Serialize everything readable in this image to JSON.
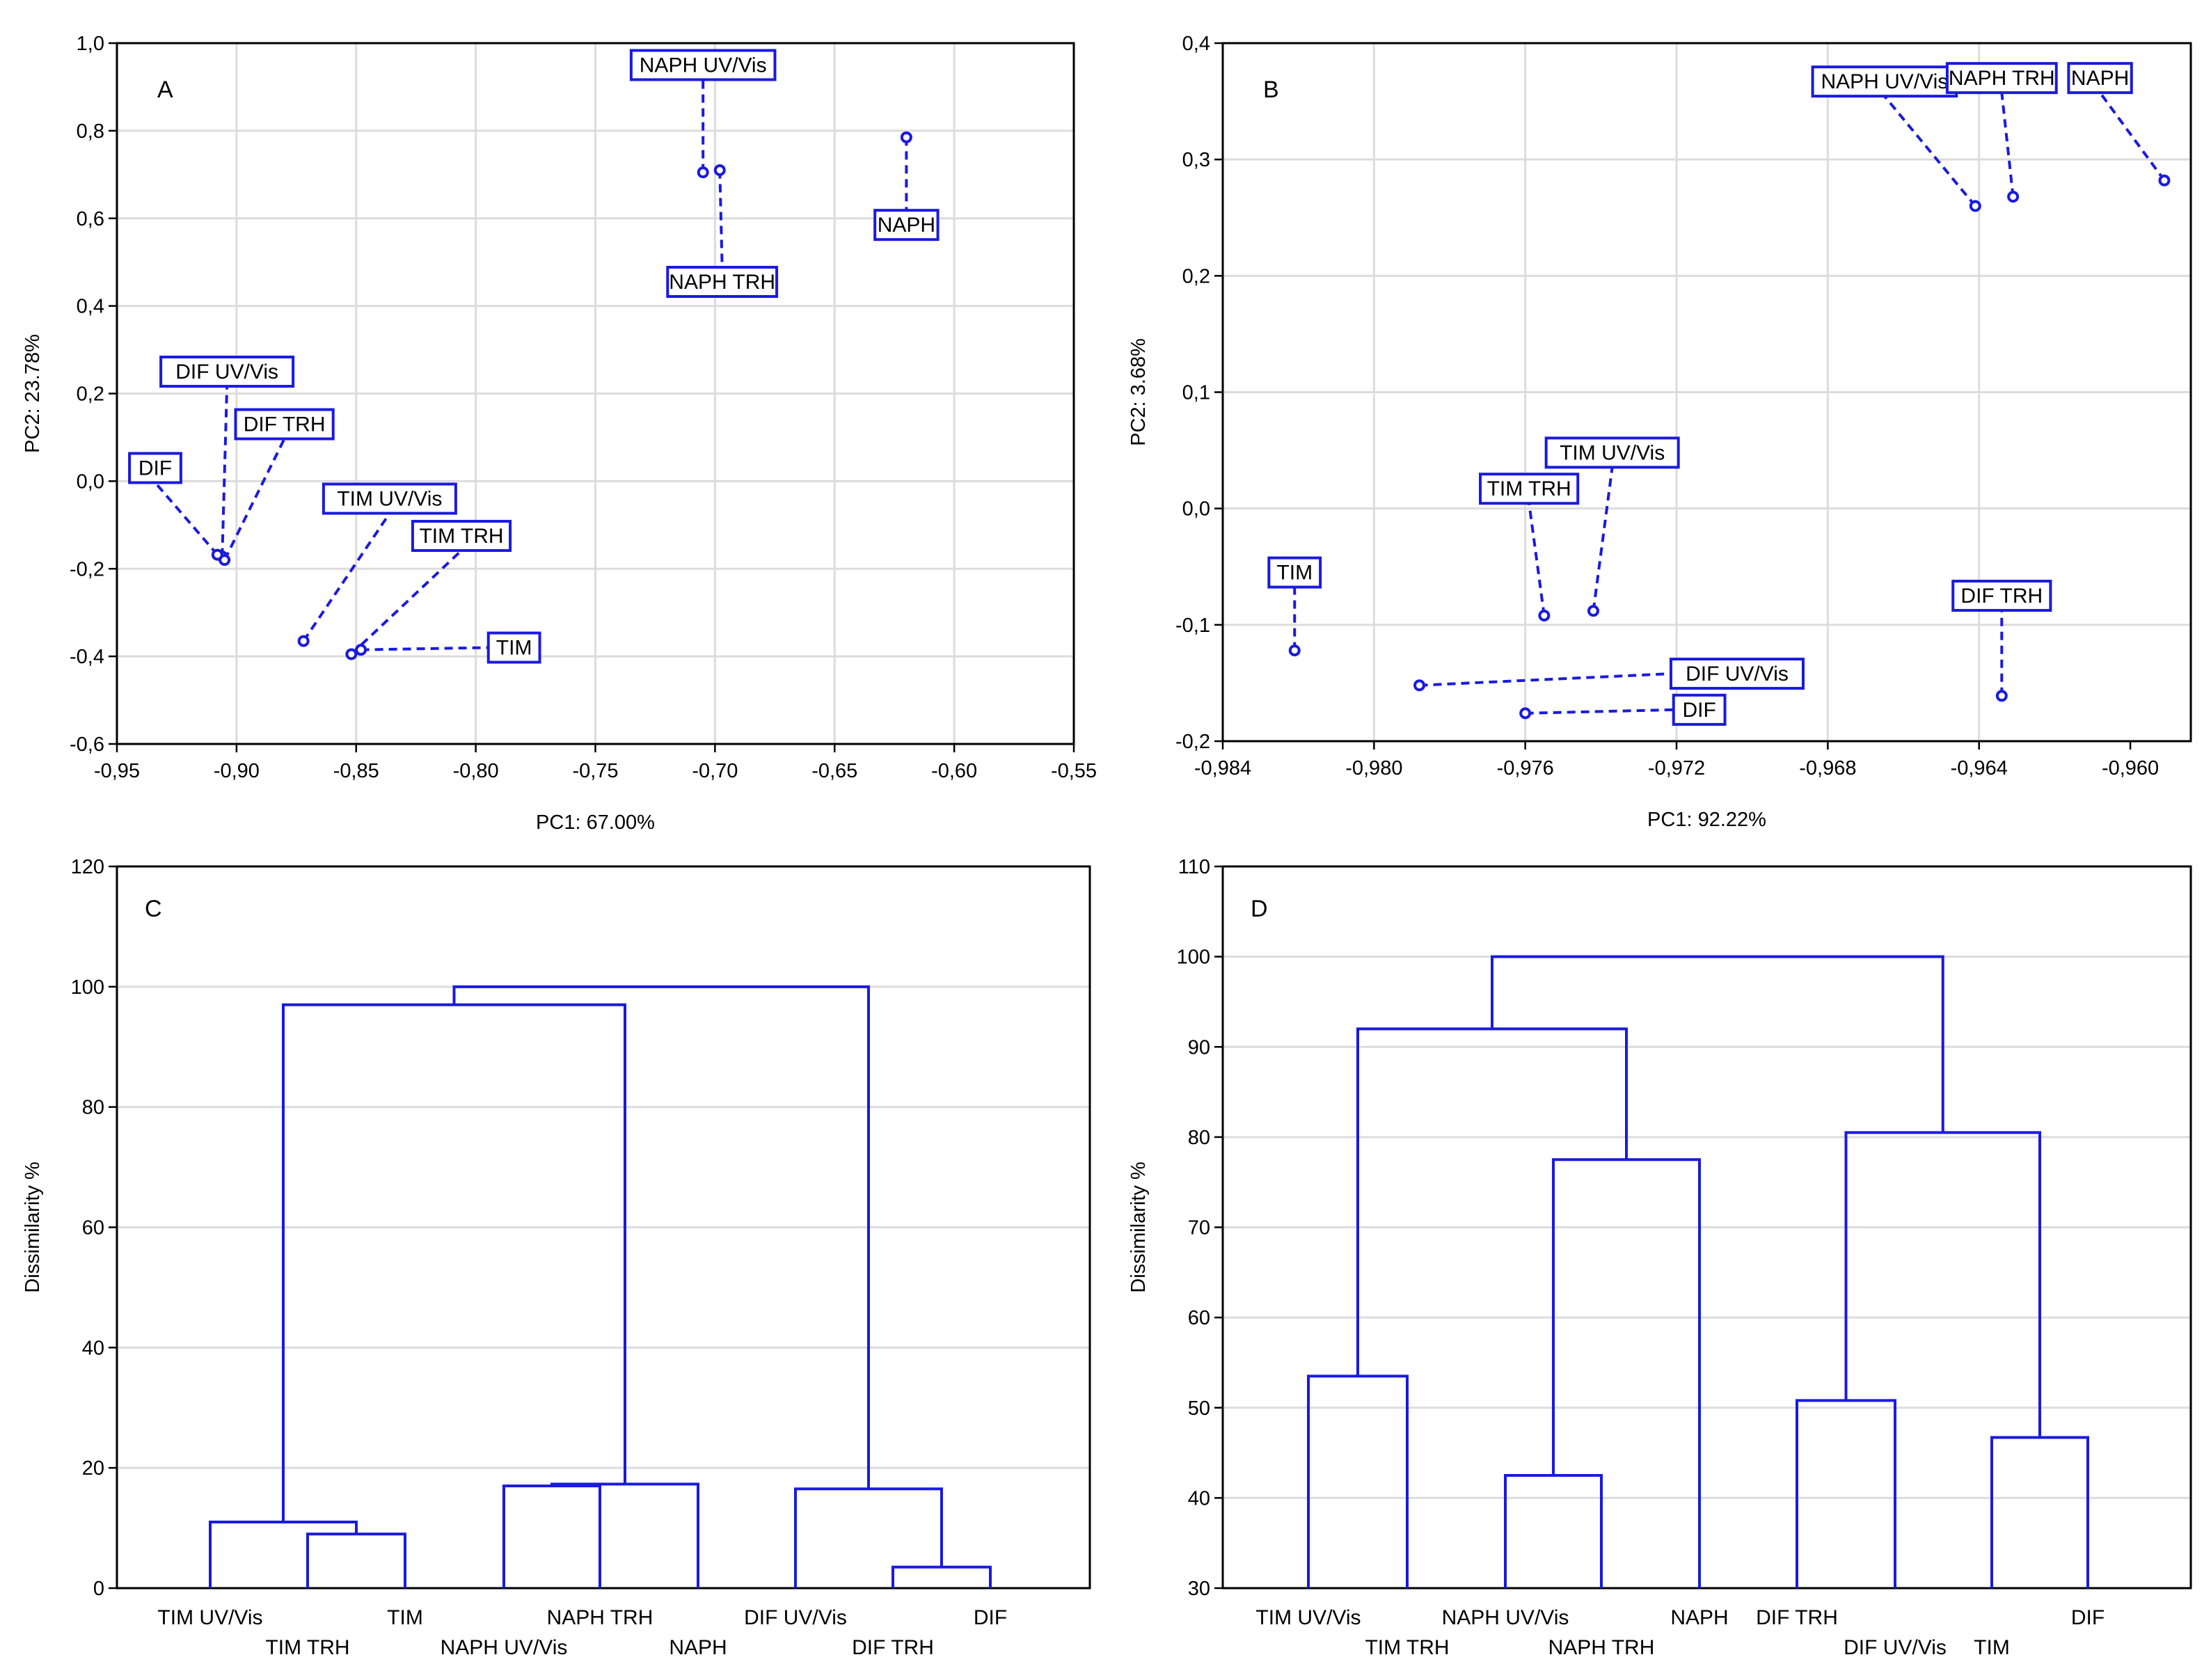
{
  "colors": {
    "series": "#1a1ae0",
    "grid": "#dcdcdc",
    "frame": "#000000",
    "leaf": "#000000"
  },
  "chart_data": [
    {
      "type": "scatter",
      "panel_label": "A",
      "xlabel": "PC1: 67.00%",
      "ylabel": "PC2: 23.78%",
      "xlim": [
        -0.95,
        -0.55
      ],
      "ylim": [
        -0.6,
        1.0
      ],
      "xticks": [
        -0.95,
        -0.9,
        -0.85,
        -0.8,
        -0.75,
        -0.7,
        -0.65,
        -0.6,
        -0.55
      ],
      "xtick_labels": [
        "-0,95",
        "-0,90",
        "-0,85",
        "-0,80",
        "-0,75",
        "-0,70",
        "-0,65",
        "-0,60",
        "-0,55"
      ],
      "yticks": [
        1.0,
        0.8,
        0.6,
        0.4,
        0.2,
        0.0,
        -0.2,
        -0.4,
        -0.6
      ],
      "ytick_labels": [
        "1,0",
        "0,8",
        "0,6",
        "0,4",
        "0,2",
        "0,0",
        "-0,2",
        "-0,4",
        "-0,6"
      ],
      "points": [
        {
          "name": "NAPH UV/Vis",
          "x": -0.705,
          "y": 0.705,
          "lx": -0.705,
          "ly": 0.95
        },
        {
          "name": "NAPH TRH",
          "x": -0.698,
          "y": 0.71,
          "lx": -0.697,
          "ly": 0.455
        },
        {
          "name": "NAPH",
          "x": -0.62,
          "y": 0.785,
          "lx": -0.62,
          "ly": 0.585
        },
        {
          "name": "DIF UV/Vis",
          "x": -0.906,
          "y": -0.172,
          "lx": -0.904,
          "ly": 0.25
        },
        {
          "name": "DIF TRH",
          "x": -0.905,
          "y": -0.18,
          "lx": -0.88,
          "ly": 0.13
        },
        {
          "name": "DIF",
          "x": -0.908,
          "y": -0.168,
          "lx": -0.934,
          "ly": 0.03
        },
        {
          "name": "TIM UV/Vis",
          "x": -0.872,
          "y": -0.365,
          "lx": -0.836,
          "ly": -0.04
        },
        {
          "name": "TIM TRH",
          "x": -0.852,
          "y": -0.395,
          "lx": -0.806,
          "ly": -0.125
        },
        {
          "name": "TIM",
          "x": -0.848,
          "y": -0.385,
          "lx": -0.784,
          "ly": -0.38
        }
      ]
    },
    {
      "type": "scatter",
      "panel_label": "B",
      "xlabel": "PC1: 92.22%",
      "ylabel": "PC2: 3.68%",
      "xlim": [
        -0.984,
        -0.9584
      ],
      "ylim": [
        -0.2,
        0.4
      ],
      "xticks": [
        -0.984,
        -0.98,
        -0.976,
        -0.972,
        -0.968,
        -0.964,
        -0.96
      ],
      "xtick_labels": [
        "-0,984",
        "-0,980",
        "-0,976",
        "-0,972",
        "-0,968",
        "-0,964",
        "-0,960"
      ],
      "yticks": [
        0.4,
        0.3,
        0.2,
        0.1,
        0.0,
        -0.1,
        -0.2
      ],
      "ytick_labels": [
        "0,4",
        "0,3",
        "0,2",
        "0,1",
        "0,0",
        "-0,1",
        "-0,2"
      ],
      "points": [
        {
          "name": "NAPH UV/Vis",
          "x": -0.9641,
          "y": 0.26,
          "lx": -0.9665,
          "ly": 0.367
        },
        {
          "name": "NAPH TRH",
          "x": -0.9631,
          "y": 0.268,
          "lx": -0.9634,
          "ly": 0.37
        },
        {
          "name": "NAPH",
          "x": -0.9591,
          "y": 0.282,
          "lx": -0.9608,
          "ly": 0.37
        },
        {
          "name": "TIM",
          "x": -0.9821,
          "y": -0.122,
          "lx": -0.9821,
          "ly": -0.055
        },
        {
          "name": "TIM TRH",
          "x": -0.9755,
          "y": -0.092,
          "lx": -0.9759,
          "ly": 0.017
        },
        {
          "name": "TIM UV/Vis",
          "x": -0.9742,
          "y": -0.088,
          "lx": -0.9737,
          "ly": 0.048
        },
        {
          "name": "DIF UV/Vis",
          "x": -0.9788,
          "y": -0.152,
          "lx": -0.9704,
          "ly": -0.142
        },
        {
          "name": "DIF",
          "x": -0.976,
          "y": -0.176,
          "lx": -0.9714,
          "ly": -0.173
        },
        {
          "name": "DIF TRH",
          "x": -0.9634,
          "y": -0.161,
          "lx": -0.9634,
          "ly": -0.075
        }
      ]
    },
    {
      "type": "dendrogram",
      "panel_label": "C",
      "ylabel": "Dissimilarity %",
      "ylim": [
        0,
        120
      ],
      "yticks": [
        0,
        20,
        40,
        60,
        80,
        100,
        120
      ],
      "ytick_labels": [
        "0",
        "20",
        "40",
        "60",
        "80",
        "100",
        "120"
      ],
      "leaves": [
        "TIM UV/Vis",
        "TIM TRH",
        "TIM",
        "NAPH UV/Vis",
        "NAPH TRH",
        "NAPH",
        "DIF UV/Vis",
        "DIF TRH",
        "DIF"
      ],
      "merges": [
        {
          "a": 1,
          "b": 2,
          "height": 9
        },
        {
          "a": 0,
          "b": 9,
          "height": 11
        },
        {
          "a": 3,
          "b": 4,
          "height": 17
        },
        {
          "a": 11,
          "b": 5,
          "height": 17.3
        },
        {
          "a": 7,
          "b": 8,
          "height": 3.5
        },
        {
          "a": 6,
          "b": 13,
          "height": 16.5
        },
        {
          "a": 10,
          "b": 12,
          "height": 97
        },
        {
          "a": 15,
          "b": 14,
          "height": 100
        }
      ]
    },
    {
      "type": "dendrogram",
      "panel_label": "D",
      "ylabel": "Dissimilarity %",
      "ylim": [
        30,
        110
      ],
      "yticks": [
        30,
        40,
        50,
        60,
        70,
        80,
        90,
        100,
        110
      ],
      "ytick_labels": [
        "30",
        "40",
        "50",
        "60",
        "70",
        "80",
        "90",
        "100",
        "110"
      ],
      "leaves": [
        "TIM UV/Vis",
        "TIM TRH",
        "NAPH UV/Vis",
        "NAPH TRH",
        "NAPH",
        "DIF TRH",
        "DIF UV/Vis",
        "TIM",
        "DIF"
      ],
      "merges": [
        {
          "a": 0,
          "b": 1,
          "height": 53.5
        },
        {
          "a": 2,
          "b": 3,
          "height": 42.5
        },
        {
          "a": 10,
          "b": 4,
          "height": 77.5
        },
        {
          "a": 9,
          "b": 11,
          "height": 92
        },
        {
          "a": 5,
          "b": 6,
          "height": 50.8
        },
        {
          "a": 7,
          "b": 8,
          "height": 46.7
        },
        {
          "a": 13,
          "b": 14,
          "height": 80.5
        },
        {
          "a": 12,
          "b": 15,
          "height": 100
        }
      ]
    }
  ]
}
